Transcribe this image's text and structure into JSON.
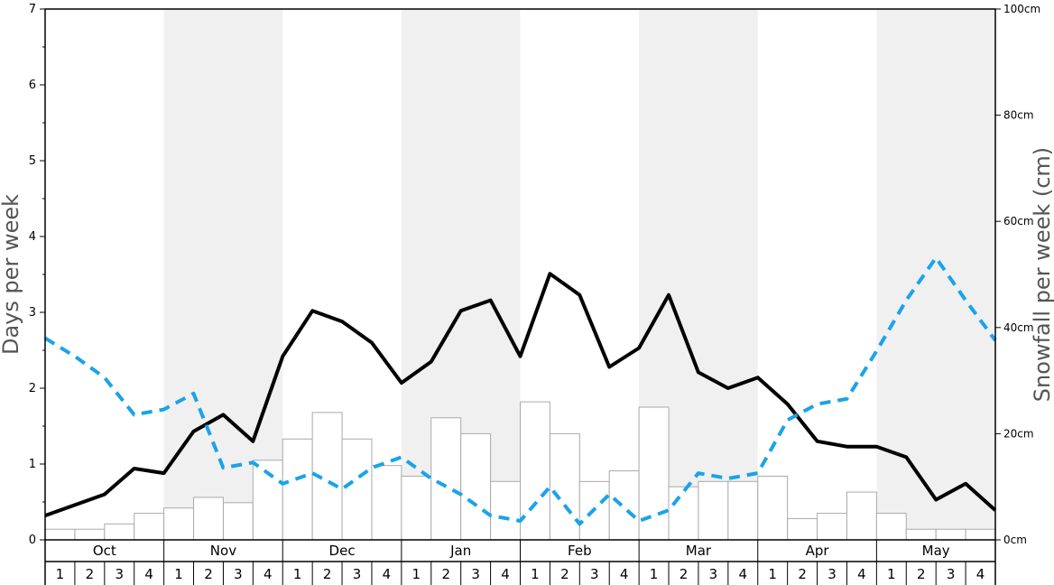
{
  "chart_data": {
    "type": "bar+line",
    "months": [
      "Oct",
      "Nov",
      "Dec",
      "Jan",
      "Feb",
      "Mar",
      "Apr",
      "May"
    ],
    "week_labels": [
      "1",
      "2",
      "3",
      "4"
    ],
    "ylabel": "Days per week",
    "ylabel_right": "Snowfall per week (cm)",
    "ylim": [
      0,
      7
    ],
    "ylim_right": [
      0,
      100
    ],
    "yticks": [
      "0",
      "1",
      "2",
      "3",
      "4",
      "5",
      "6",
      "7"
    ],
    "yticks_right": [
      "0cm",
      "20cm",
      "40cm",
      "60cm",
      "80cm",
      "100cm"
    ],
    "alternate_month_shading": true,
    "colors": {
      "bars_fill": "#ffffff",
      "bars_stroke": "#aaaaaa",
      "solid_line": "#000000",
      "dashed_line": "#1aa3e8",
      "shade": "#f0f0f0"
    },
    "series": [
      {
        "type": "bar",
        "axis": "right",
        "values": [
          2,
          2,
          3,
          5,
          6,
          8,
          7,
          15,
          19,
          24,
          19,
          14,
          12,
          23,
          20,
          11,
          26,
          20,
          11,
          13,
          25,
          10,
          11,
          11,
          12,
          4,
          5,
          9,
          5,
          2,
          2,
          2
        ]
      },
      {
        "type": "line",
        "style": "solid",
        "axis": "left",
        "values": [
          0.32,
          0.46,
          0.6,
          0.94,
          0.88,
          1.43,
          1.65,
          1.3,
          2.42,
          3.02,
          2.88,
          2.6,
          2.07,
          2.35,
          3.02,
          3.16,
          2.42,
          3.51,
          3.23,
          2.28,
          2.53,
          3.23,
          2.21,
          2.0,
          2.14,
          1.79,
          1.3,
          1.23,
          1.23,
          1.09,
          0.53,
          0.74,
          0.39
        ]
      },
      {
        "type": "line",
        "style": "dashed",
        "axis": "left",
        "values": [
          2.66,
          2.42,
          2.14,
          1.65,
          1.72,
          1.93,
          0.95,
          1.02,
          0.74,
          0.88,
          0.67,
          0.95,
          1.09,
          0.81,
          0.6,
          0.32,
          0.25,
          0.7,
          0.21,
          0.6,
          0.25,
          0.39,
          0.88,
          0.81,
          0.88,
          1.58,
          1.79,
          1.86,
          2.49,
          3.16,
          3.72,
          3.16,
          2.63
        ]
      }
    ]
  }
}
